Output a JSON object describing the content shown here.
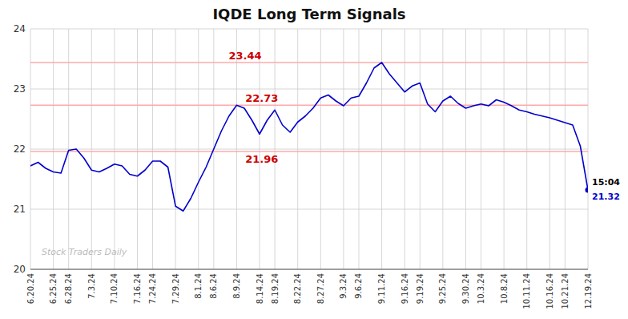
{
  "chart_data": {
    "type": "line",
    "title": "IQDE Long Term Signals",
    "color": "#0000cc",
    "background_color": "#ffffff",
    "grid_color": "#cccccc",
    "grid": true,
    "ylim": [
      20,
      24
    ],
    "yticks": [
      20,
      21,
      22,
      23,
      24
    ],
    "categories": [
      "6.20.24",
      null,
      null,
      "6.25.24",
      null,
      "6.28.24",
      null,
      null,
      "7.3.24",
      null,
      null,
      "7.10.24",
      null,
      null,
      "7.16.24",
      null,
      "7.24.24",
      null,
      null,
      "7.29.24",
      null,
      null,
      "8.1.24",
      null,
      "8.6.24",
      null,
      null,
      "8.9.24",
      null,
      null,
      "8.14.24",
      null,
      "8.19.24",
      null,
      null,
      "8.22.24",
      null,
      null,
      "8.27.24",
      null,
      null,
      "9.3.24",
      null,
      "9.6.24",
      null,
      null,
      "9.11.24",
      null,
      null,
      "9.16.24",
      null,
      "9.19.24",
      null,
      null,
      "9.25.24",
      null,
      null,
      "9.30.24",
      null,
      "10.3.24",
      null,
      null,
      "10.8.24",
      null,
      null,
      "10.11.24",
      null,
      null,
      "10.16.24",
      null,
      "10.21.24",
      null,
      null,
      "12.19.24"
    ],
    "values": [
      21.72,
      21.78,
      21.68,
      21.62,
      21.6,
      21.98,
      22.0,
      21.85,
      21.65,
      21.62,
      21.68,
      21.75,
      21.72,
      21.58,
      21.55,
      21.65,
      21.8,
      21.8,
      21.7,
      21.05,
      20.97,
      21.18,
      21.45,
      21.7,
      22.0,
      22.3,
      22.55,
      22.73,
      22.68,
      22.48,
      22.25,
      22.48,
      22.65,
      22.4,
      22.28,
      22.45,
      22.55,
      22.68,
      22.85,
      22.9,
      22.8,
      22.72,
      22.85,
      22.88,
      23.1,
      23.35,
      23.44,
      23.25,
      23.1,
      22.95,
      23.05,
      23.1,
      22.75,
      22.62,
      22.8,
      22.88,
      22.76,
      22.68,
      22.72,
      22.75,
      22.72,
      22.82,
      22.78,
      22.72,
      22.65,
      22.62,
      22.58,
      22.55,
      22.52,
      22.48,
      22.44,
      22.4,
      22.05,
      21.32
    ],
    "reference_lines": [
      {
        "y": 23.44,
        "color": "#ffaaaa",
        "label": "23.44",
        "label_color": "#cc0000"
      },
      {
        "y": 22.73,
        "color": "#ffaaaa",
        "label": "22.73",
        "label_color": "#cc0000"
      },
      {
        "y": 21.96,
        "color": "#ffaaaa",
        "label": "21.96",
        "label_color": "#cc0000"
      }
    ],
    "end_labels": [
      "15:04",
      "21.32"
    ],
    "watermark": "Stock Traders Daily"
  }
}
